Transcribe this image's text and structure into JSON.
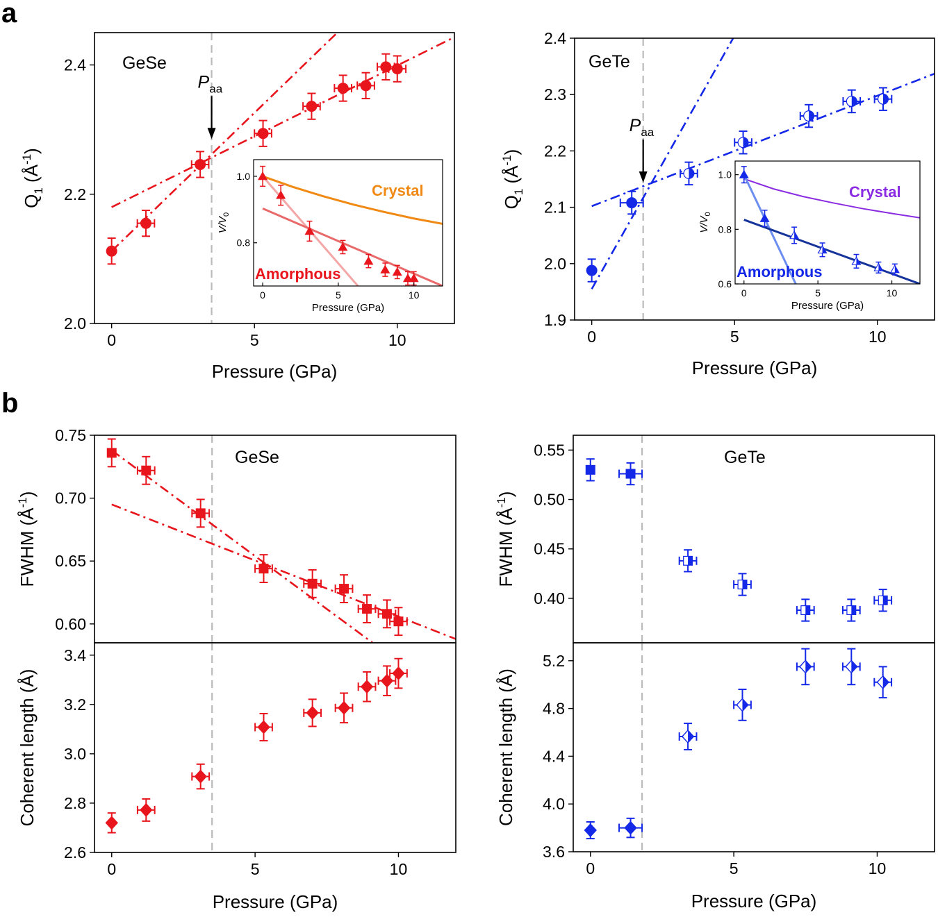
{
  "panel_letters": {
    "a": "a",
    "b": "b"
  },
  "colors": {
    "red": "#e8151d",
    "blue": "#1428e8",
    "orange": "#f08a14",
    "purple": "#8a2be2",
    "navy": "#16339a",
    "pink": "#f3a7a7",
    "light_red": "#e86a6a",
    "light_blue": "#6c8ef0",
    "vline": "#bbbbbb"
  },
  "chart_data": [
    {
      "id": "a_gese",
      "type": "scatter",
      "title": "GeSe",
      "xlabel": "Pressure (GPa)",
      "ylabel": {
        "main": "Q",
        "sub": "1",
        "unit_open": " (Å",
        "sup": "-1",
        "unit_close": ")"
      },
      "xlim": [
        -0.6,
        12
      ],
      "ylim": [
        2.0,
        2.45
      ],
      "xticks": [
        "0",
        "5",
        "10"
      ],
      "xtick_values": [
        0,
        5,
        10
      ],
      "yticks": [
        "2.0",
        "2.2",
        "2.4"
      ],
      "ytick_values": [
        2.0,
        2.2,
        2.4
      ],
      "paa_label": {
        "main": "P",
        "sub": "aa"
      },
      "paa": 3.5,
      "points": [
        {
          "x": 0.0,
          "y": 2.112,
          "xerr": 0.0,
          "yerr": 0.02
        },
        {
          "x": 1.2,
          "y": 2.155,
          "xerr": 0.3,
          "yerr": 0.02
        },
        {
          "x": 3.1,
          "y": 2.246,
          "xerr": 0.3,
          "yerr": 0.02
        },
        {
          "x": 5.3,
          "y": 2.294,
          "xerr": 0.3,
          "yerr": 0.02
        },
        {
          "x": 7.0,
          "y": 2.336,
          "xerr": 0.3,
          "yerr": 0.02
        },
        {
          "x": 8.1,
          "y": 2.364,
          "xerr": 0.3,
          "yerr": 0.02
        },
        {
          "x": 8.9,
          "y": 2.368,
          "xerr": 0.3,
          "yerr": 0.02
        },
        {
          "x": 9.6,
          "y": 2.397,
          "xerr": 0.3,
          "yerr": 0.02
        },
        {
          "x": 10.0,
          "y": 2.394,
          "xerr": 0.3,
          "yerr": 0.02
        }
      ],
      "fit_lines": [
        {
          "name": "low-pressure fit",
          "x": [
            0,
            7.9
          ],
          "y": [
            2.112,
            2.45
          ]
        },
        {
          "name": "high-pressure fit",
          "x": [
            0,
            12
          ],
          "y": [
            2.18,
            2.443
          ]
        }
      ],
      "inset": {
        "xlabel": "Pressure (GPa)",
        "ylabel": {
          "main": "V/V",
          "sub": "0"
        },
        "xlim": [
          -0.6,
          11.9
        ],
        "ylim": [
          0.67,
          1.05
        ],
        "xticks": [
          "0",
          "5",
          "10"
        ],
        "xtick_values": [
          0,
          5,
          10
        ],
        "yticks": [
          "0.8",
          "1.0"
        ],
        "ytick_values": [
          0.8,
          1.0
        ],
        "crystal_label": "Crystal",
        "amorphous_label": "Amorphous",
        "crystal_curve": {
          "x": [
            0,
            2,
            4,
            6,
            8,
            10,
            11.9
          ],
          "y": [
            1.0,
            0.968,
            0.94,
            0.915,
            0.893,
            0.873,
            0.857
          ]
        },
        "fit_steep": {
          "x": [
            0,
            6.3
          ],
          "y": [
            1.0,
            0.67
          ]
        },
        "fit_shallow": {
          "x": [
            0,
            11.9
          ],
          "y": [
            0.903,
            0.67
          ]
        },
        "points": [
          {
            "x": 0.0,
            "y": 1.0,
            "yerr": 0.03
          },
          {
            "x": 1.2,
            "y": 0.943,
            "yerr": 0.03
          },
          {
            "x": 3.1,
            "y": 0.835,
            "yerr": 0.03
          },
          {
            "x": 5.3,
            "y": 0.787,
            "yerr": 0.02
          },
          {
            "x": 7.0,
            "y": 0.745,
            "yerr": 0.02
          },
          {
            "x": 8.1,
            "y": 0.719,
            "yerr": 0.02
          },
          {
            "x": 8.9,
            "y": 0.712,
            "yerr": 0.02
          },
          {
            "x": 9.6,
            "y": 0.693,
            "yerr": 0.02
          },
          {
            "x": 10.0,
            "y": 0.693,
            "yerr": 0.02
          }
        ]
      }
    },
    {
      "id": "a_gete",
      "type": "scatter",
      "title": "GeTe",
      "xlabel": "Pressure (GPa)",
      "ylabel": {
        "main": "Q",
        "sub": "1",
        "unit_open": " (Å",
        "sup": "-1",
        "unit_close": ")"
      },
      "xlim": [
        -0.6,
        12
      ],
      "ylim": [
        1.9,
        2.4
      ],
      "xticks": [
        "0",
        "5",
        "10"
      ],
      "xtick_values": [
        0,
        5,
        10
      ],
      "yticks": [
        "1.9",
        "2.0",
        "2.1",
        "2.2",
        "2.3",
        "2.4"
      ],
      "ytick_values": [
        1.9,
        2.0,
        2.1,
        2.2,
        2.3,
        2.4
      ],
      "paa_label": {
        "main": "P",
        "sub": "aa"
      },
      "paa": 1.8,
      "points": [
        {
          "x": 0.0,
          "y": 1.988,
          "xerr": 0.0,
          "yerr": 0.02
        },
        {
          "x": 1.4,
          "y": 2.108,
          "xerr": 0.4,
          "yerr": 0.02
        },
        {
          "x": 3.4,
          "y": 2.16,
          "xerr": 0.3,
          "yerr": 0.02
        },
        {
          "x": 5.3,
          "y": 2.215,
          "xerr": 0.3,
          "yerr": 0.02
        },
        {
          "x": 7.6,
          "y": 2.262,
          "xerr": 0.3,
          "yerr": 0.02
        },
        {
          "x": 9.1,
          "y": 2.288,
          "xerr": 0.3,
          "yerr": 0.02
        },
        {
          "x": 10.2,
          "y": 2.292,
          "xerr": 0.3,
          "yerr": 0.02
        }
      ],
      "fit_lines": [
        {
          "name": "low-pressure fit",
          "x": [
            0,
            4.95
          ],
          "y": [
            1.955,
            2.4
          ]
        },
        {
          "name": "high-pressure fit",
          "x": [
            0,
            12
          ],
          "y": [
            2.102,
            2.337
          ]
        }
      ],
      "inset": {
        "xlabel": "Pressure (GPa)",
        "ylabel": {
          "main": "V/V",
          "sub": "0"
        },
        "xlim": [
          -0.6,
          11.9
        ],
        "ylim": [
          0.6,
          1.05
        ],
        "xticks": [
          "0",
          "5",
          "10"
        ],
        "xtick_values": [
          0,
          5,
          10
        ],
        "yticks": [
          "0.6",
          "0.8",
          "1.0"
        ],
        "ytick_values": [
          0.6,
          0.8,
          1.0
        ],
        "crystal_label": "Crystal",
        "amorphous_label": "Amorphous",
        "crystal_curve": {
          "x": [
            0,
            2,
            4,
            6,
            8,
            10,
            11.9
          ],
          "y": [
            0.985,
            0.948,
            0.92,
            0.897,
            0.876,
            0.858,
            0.842
          ]
        },
        "fit_steep": {
          "x": [
            0,
            3.5
          ],
          "y": [
            1.0,
            0.6
          ]
        },
        "fit_shallow": {
          "x": [
            0,
            11.9
          ],
          "y": [
            0.835,
            0.6
          ]
        },
        "points": [
          {
            "x": 0.0,
            "y": 1.0,
            "yerr": 0.03
          },
          {
            "x": 1.4,
            "y": 0.84,
            "yerr": 0.03
          },
          {
            "x": 3.4,
            "y": 0.778,
            "yerr": 0.03
          },
          {
            "x": 5.3,
            "y": 0.725,
            "yerr": 0.025
          },
          {
            "x": 7.6,
            "y": 0.683,
            "yerr": 0.025
          },
          {
            "x": 9.1,
            "y": 0.66,
            "yerr": 0.02
          },
          {
            "x": 10.2,
            "y": 0.653,
            "yerr": 0.02
          }
        ]
      }
    },
    {
      "id": "b_gese_fwhm",
      "type": "scatter",
      "title": "GeSe",
      "ylabel": {
        "main": "FWHM (Å",
        "sup": "-1",
        "close": ")"
      },
      "xlim": [
        -0.6,
        12
      ],
      "ylim": [
        0.585,
        0.75
      ],
      "yticks": [
        "0.60",
        "0.65",
        "0.70",
        "0.75"
      ],
      "ytick_values": [
        0.6,
        0.65,
        0.7,
        0.75
      ],
      "paa": 3.5,
      "points": [
        {
          "x": 0.0,
          "y": 0.736,
          "xerr": 0.0,
          "yerr": 0.011
        },
        {
          "x": 1.2,
          "y": 0.722,
          "xerr": 0.3,
          "yerr": 0.011
        },
        {
          "x": 3.1,
          "y": 0.688,
          "xerr": 0.3,
          "yerr": 0.011
        },
        {
          "x": 5.3,
          "y": 0.644,
          "xerr": 0.3,
          "yerr": 0.011
        },
        {
          "x": 7.0,
          "y": 0.632,
          "xerr": 0.3,
          "yerr": 0.011
        },
        {
          "x": 8.1,
          "y": 0.628,
          "xerr": 0.3,
          "yerr": 0.011
        },
        {
          "x": 8.9,
          "y": 0.612,
          "xerr": 0.3,
          "yerr": 0.011
        },
        {
          "x": 9.6,
          "y": 0.608,
          "xerr": 0.3,
          "yerr": 0.011
        },
        {
          "x": 10.0,
          "y": 0.602,
          "xerr": 0.3,
          "yerr": 0.011
        }
      ],
      "fit_lines": [
        {
          "name": "low-pressure fit",
          "x": [
            0,
            9.1
          ],
          "y": [
            0.738,
            0.585
          ]
        },
        {
          "name": "high-pressure fit",
          "x": [
            0,
            12
          ],
          "y": [
            0.695,
            0.588
          ]
        }
      ]
    },
    {
      "id": "b_gese_coh",
      "type": "scatter",
      "xlabel": "Pressure (GPa)",
      "ylabel": {
        "main": "Coherent length (Å)"
      },
      "xlim": [
        -0.6,
        12
      ],
      "ylim": [
        2.6,
        3.45
      ],
      "xticks": [
        "0",
        "5",
        "10"
      ],
      "xtick_values": [
        0,
        5,
        10
      ],
      "yticks": [
        "2.6",
        "2.8",
        "3.0",
        "3.2",
        "3.4"
      ],
      "ytick_values": [
        2.6,
        2.8,
        3.0,
        3.2,
        3.4
      ],
      "paa": 3.5,
      "points": [
        {
          "x": 0.0,
          "y": 2.72,
          "xerr": 0.0,
          "yerr": 0.04
        },
        {
          "x": 1.2,
          "y": 2.772,
          "xerr": 0.3,
          "yerr": 0.045
        },
        {
          "x": 3.1,
          "y": 2.908,
          "xerr": 0.3,
          "yerr": 0.05
        },
        {
          "x": 5.3,
          "y": 3.108,
          "xerr": 0.3,
          "yerr": 0.055
        },
        {
          "x": 7.0,
          "y": 3.166,
          "xerr": 0.3,
          "yerr": 0.055
        },
        {
          "x": 8.1,
          "y": 3.186,
          "xerr": 0.3,
          "yerr": 0.06
        },
        {
          "x": 8.9,
          "y": 3.272,
          "xerr": 0.3,
          "yerr": 0.06
        },
        {
          "x": 9.6,
          "y": 3.296,
          "xerr": 0.3,
          "yerr": 0.06
        },
        {
          "x": 10.0,
          "y": 3.326,
          "xerr": 0.3,
          "yerr": 0.06
        }
      ]
    },
    {
      "id": "b_gete_fwhm",
      "type": "scatter",
      "title": "GeTe",
      "ylabel": {
        "main": "FWHM (Å",
        "sup": "-1",
        "close": ")"
      },
      "xlim": [
        -0.6,
        12
      ],
      "ylim": [
        0.355,
        0.565
      ],
      "yticks": [
        "0.40",
        "0.45",
        "0.50",
        "0.55"
      ],
      "ytick_values": [
        0.4,
        0.45,
        0.5,
        0.55
      ],
      "paa": 1.8,
      "points": [
        {
          "x": 0.0,
          "y": 0.53,
          "xerr": 0.0,
          "yerr": 0.011
        },
        {
          "x": 1.4,
          "y": 0.526,
          "xerr": 0.4,
          "yerr": 0.011
        },
        {
          "x": 3.4,
          "y": 0.438,
          "xerr": 0.3,
          "yerr": 0.011
        },
        {
          "x": 5.3,
          "y": 0.414,
          "xerr": 0.3,
          "yerr": 0.011
        },
        {
          "x": 7.5,
          "y": 0.388,
          "xerr": 0.3,
          "yerr": 0.011
        },
        {
          "x": 9.1,
          "y": 0.388,
          "xerr": 0.3,
          "yerr": 0.011
        },
        {
          "x": 10.2,
          "y": 0.398,
          "xerr": 0.3,
          "yerr": 0.011
        }
      ]
    },
    {
      "id": "b_gete_coh",
      "type": "scatter",
      "xlabel": "Pressure (GPa)",
      "ylabel": {
        "main": "Coherent length (Å)"
      },
      "xlim": [
        -0.6,
        12
      ],
      "ylim": [
        3.6,
        5.35
      ],
      "xticks": [
        "0",
        "5",
        "10"
      ],
      "xtick_values": [
        0,
        5,
        10
      ],
      "yticks": [
        "3.6",
        "4.0",
        "4.4",
        "4.8",
        "5.2"
      ],
      "ytick_values": [
        3.6,
        4.0,
        4.4,
        4.8,
        5.2
      ],
      "paa": 1.8,
      "points": [
        {
          "x": 0.0,
          "y": 3.78,
          "xerr": 0.0,
          "yerr": 0.07
        },
        {
          "x": 1.4,
          "y": 3.8,
          "xerr": 0.4,
          "yerr": 0.08
        },
        {
          "x": 3.4,
          "y": 4.565,
          "xerr": 0.3,
          "yerr": 0.11
        },
        {
          "x": 5.3,
          "y": 4.83,
          "xerr": 0.3,
          "yerr": 0.13
        },
        {
          "x": 7.5,
          "y": 5.15,
          "xerr": 0.3,
          "yerr": 0.15
        },
        {
          "x": 9.1,
          "y": 5.15,
          "xerr": 0.3,
          "yerr": 0.15
        },
        {
          "x": 10.2,
          "y": 5.02,
          "xerr": 0.3,
          "yerr": 0.13
        }
      ]
    }
  ]
}
